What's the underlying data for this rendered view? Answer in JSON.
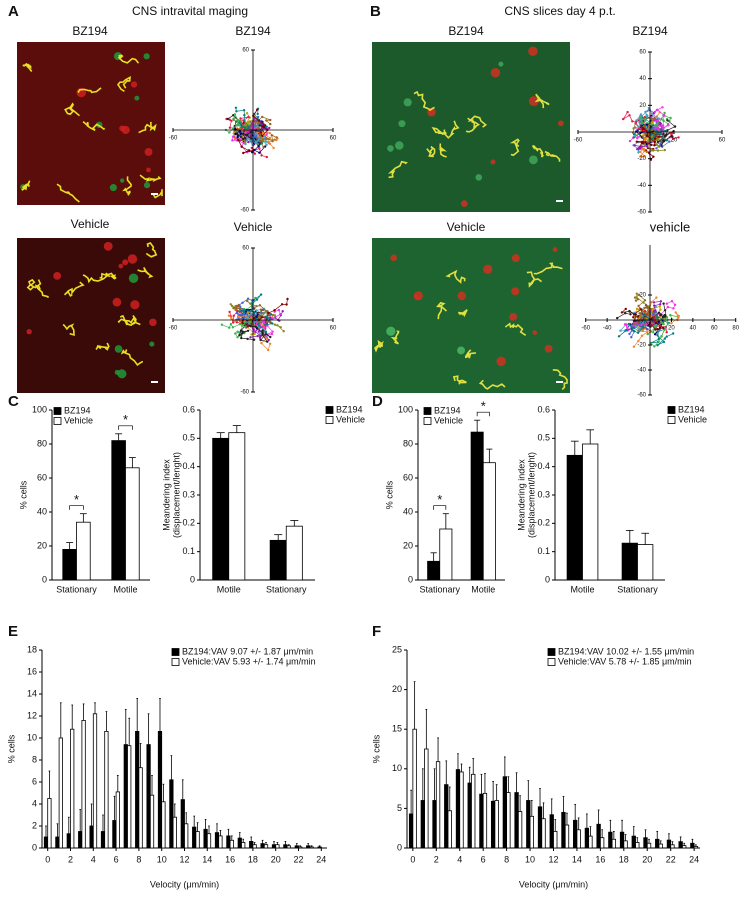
{
  "figure": {
    "panel_labels": [
      "A",
      "B",
      "C",
      "D",
      "E",
      "F"
    ],
    "headings": [
      "CNS intravital maging",
      "CNS slices day 4 p.t."
    ]
  },
  "images": [
    {
      "title": "BZ194"
    },
    {
      "title": "Vehicle"
    },
    {
      "title": "BZ194"
    },
    {
      "title": "Vehicle"
    }
  ],
  "chart_data": [
    {
      "type": "tracks",
      "title": "BZ194",
      "xlim": [
        -60,
        60
      ],
      "ylim": [
        -60,
        60
      ],
      "xticks": [
        -60,
        60
      ],
      "yticks": [
        -60,
        60
      ]
    },
    {
      "type": "tracks",
      "title": "Vehicle",
      "xlim": [
        -60,
        60
      ],
      "ylim": [
        -60,
        60
      ],
      "xticks": [
        -60,
        60
      ],
      "yticks": [
        -60,
        60
      ]
    },
    {
      "type": "tracks",
      "title": "BZ194",
      "xlim": [
        -60,
        60
      ],
      "ylim": [
        -60,
        60
      ],
      "xticks": [
        -60,
        20,
        60
      ],
      "yticks": [
        -60,
        -40,
        -20,
        20,
        40,
        60
      ]
    },
    {
      "type": "tracks",
      "title": "vehicle",
      "xlim": [
        -60,
        80
      ],
      "ylim": [
        -60,
        60
      ],
      "xticks": [
        -60,
        -40,
        20,
        40,
        60,
        80
      ],
      "yticks": [
        -60,
        -40,
        -20,
        20
      ]
    },
    {
      "type": "bar",
      "ylabel": "% cells",
      "categories": [
        "Stationary",
        "Motile"
      ],
      "ylim": [
        0,
        100
      ],
      "yticks": [
        0,
        20,
        40,
        60,
        80,
        100
      ],
      "annotations": [
        "*",
        "*"
      ],
      "series": [
        {
          "name": "BZ194",
          "color": "#000000",
          "values": [
            18,
            82
          ],
          "errors": [
            4,
            4
          ]
        },
        {
          "name": "Vehicle",
          "color": "#ffffff",
          "values": [
            34,
            66
          ],
          "errors": [
            5,
            6
          ]
        }
      ]
    },
    {
      "type": "bar",
      "ylabel": [
        "Meandering index",
        "(displacement/lenght)"
      ],
      "categories": [
        "Motile",
        "Stationary"
      ],
      "ylim": [
        0,
        0.6
      ],
      "yticks": [
        0,
        0.1,
        0.2,
        0.3,
        0.4,
        0.5,
        0.6
      ],
      "series": [
        {
          "name": "BZ194",
          "color": "#000000",
          "values": [
            0.5,
            0.14
          ],
          "errors": [
            0.02,
            0.02
          ]
        },
        {
          "name": "Vehicle",
          "color": "#ffffff",
          "values": [
            0.52,
            0.19
          ],
          "errors": [
            0.025,
            0.02
          ]
        }
      ]
    },
    {
      "type": "bar",
      "ylabel": "% cells",
      "categories": [
        "Stationary",
        "Motile"
      ],
      "ylim": [
        0,
        100
      ],
      "yticks": [
        0,
        20,
        40,
        60,
        80,
        100
      ],
      "annotations": [
        "*",
        "*"
      ],
      "series": [
        {
          "name": "BZ194",
          "color": "#000000",
          "values": [
            11,
            87
          ],
          "errors": [
            5,
            7
          ]
        },
        {
          "name": "Vehicle",
          "color": "#ffffff",
          "values": [
            30,
            69
          ],
          "errors": [
            9,
            8
          ]
        }
      ]
    },
    {
      "type": "bar",
      "ylabel": [
        "Meandering index",
        "(displacement/lenght)"
      ],
      "categories": [
        "Motile",
        "Stationary"
      ],
      "ylim": [
        0,
        0.6
      ],
      "yticks": [
        0,
        0.1,
        0.2,
        0.3,
        0.4,
        0.5,
        0.6
      ],
      "series": [
        {
          "name": "BZ194",
          "color": "#000000",
          "values": [
            0.44,
            0.13
          ],
          "errors": [
            0.05,
            0.045
          ]
        },
        {
          "name": "Vehicle",
          "color": "#ffffff",
          "values": [
            0.48,
            0.125
          ],
          "errors": [
            0.05,
            0.04
          ]
        }
      ]
    },
    {
      "type": "bar",
      "ylabel": "% cells",
      "xlabel": "Velocity (μm/min)",
      "x": [
        0,
        1,
        2,
        3,
        4,
        5,
        6,
        7,
        8,
        9,
        10,
        11,
        12,
        13,
        14,
        15,
        16,
        17,
        18,
        19,
        20,
        21,
        22,
        23,
        24
      ],
      "xlim": [
        -0.5,
        24.5
      ],
      "xticks": [
        0,
        2,
        4,
        6,
        8,
        10,
        12,
        14,
        16,
        18,
        20,
        22,
        24
      ],
      "ylim": [
        0,
        18
      ],
      "yticks": [
        0,
        2,
        4,
        6,
        8,
        10,
        12,
        14,
        16,
        18
      ],
      "series": [
        {
          "name": "BZ194:VAV 9.07 +/- 1.87 μm/min",
          "color": "#000000",
          "values": [
            1,
            1,
            1.3,
            1.5,
            2,
            1.5,
            2.5,
            9.4,
            10.6,
            9.4,
            10.6,
            6.2,
            4.4,
            1.9,
            1.7,
            1.4,
            1.1,
            0.9,
            0.6,
            0.4,
            0.3,
            0.3,
            0.2,
            0.2,
            0.1
          ],
          "errors": [
            1,
            1.2,
            1.5,
            2,
            2,
            1.5,
            2.2,
            3.2,
            3,
            2.8,
            3,
            2.2,
            1.8,
            1,
            0.9,
            0.8,
            0.6,
            0.5,
            0.4,
            0.3,
            0.3,
            0.3,
            0.2,
            0.2,
            0.1
          ]
        },
        {
          "name": "Vehicle:VAV 5.93 +/- 1.74 μm/min",
          "color": "#ffffff",
          "values": [
            4.5,
            10,
            10.8,
            11.6,
            12.2,
            10.6,
            5.1,
            9.3,
            7.3,
            4.8,
            4.2,
            2.8,
            2.2,
            1.5,
            1.3,
            1.1,
            0.7,
            0.5,
            0.3,
            0.3,
            0.3,
            0.2,
            0.1,
            0.1,
            0
          ],
          "errors": [
            2.5,
            3.2,
            2.2,
            1.5,
            1,
            1.8,
            1.5,
            2.5,
            2.2,
            1.8,
            1.6,
            1.2,
            1,
            0.8,
            0.7,
            0.5,
            0.4,
            0.3,
            0.2,
            0.2,
            0.2,
            0.1,
            0.1,
            0.1,
            0
          ]
        }
      ]
    },
    {
      "type": "bar",
      "ylabel": "% cells",
      "xlabel": "Velocity (μm/min)",
      "x": [
        0,
        1,
        2,
        3,
        4,
        5,
        6,
        7,
        8,
        9,
        10,
        11,
        12,
        13,
        14,
        15,
        16,
        17,
        18,
        19,
        20,
        21,
        22,
        23,
        24
      ],
      "xlim": [
        -0.5,
        24.5
      ],
      "xticks": [
        0,
        2,
        4,
        6,
        8,
        10,
        12,
        14,
        16,
        18,
        20,
        22,
        24
      ],
      "ylim": [
        0,
        25
      ],
      "yticks": [
        0,
        5,
        10,
        15,
        20,
        25
      ],
      "series": [
        {
          "name": "BZ194:VAV 10.02 +/- 1.55 μm/min",
          "color": "#000000",
          "values": [
            4.3,
            6,
            6,
            8,
            9.9,
            8.2,
            6.8,
            5.9,
            9,
            7,
            6,
            5.2,
            4.2,
            4.5,
            3.5,
            2.5,
            3,
            2,
            2,
            1.5,
            1.3,
            1.1,
            1,
            0.8,
            0.6
          ],
          "errors": [
            3,
            4,
            4,
            3,
            2,
            2,
            2.5,
            2.5,
            2.5,
            2.5,
            2.5,
            2.3,
            2,
            2,
            2,
            1.8,
            1.8,
            1.5,
            1.5,
            1.2,
            1,
            1,
            0.8,
            0.6,
            0.5
          ]
        },
        {
          "name": "Vehicle:VAV 5.78 +/- 1.85 μm/min",
          "color": "#ffffff",
          "values": [
            15,
            12.5,
            10.9,
            4.7,
            9.6,
            9.3,
            6.9,
            6,
            7,
            4.6,
            4,
            3.7,
            2.1,
            2.9,
            2.3,
            1.5,
            1.3,
            1.1,
            0.9,
            0.7,
            0.6,
            0.5,
            0.4,
            0.3,
            0.2
          ],
          "errors": [
            6,
            5,
            3,
            3,
            1,
            2,
            2.5,
            2,
            2,
            2,
            2,
            2,
            1.5,
            1.5,
            1.5,
            1.2,
            1,
            1,
            0.8,
            0.6,
            0.5,
            0.4,
            0.4,
            0.3,
            0.2
          ]
        }
      ]
    }
  ]
}
